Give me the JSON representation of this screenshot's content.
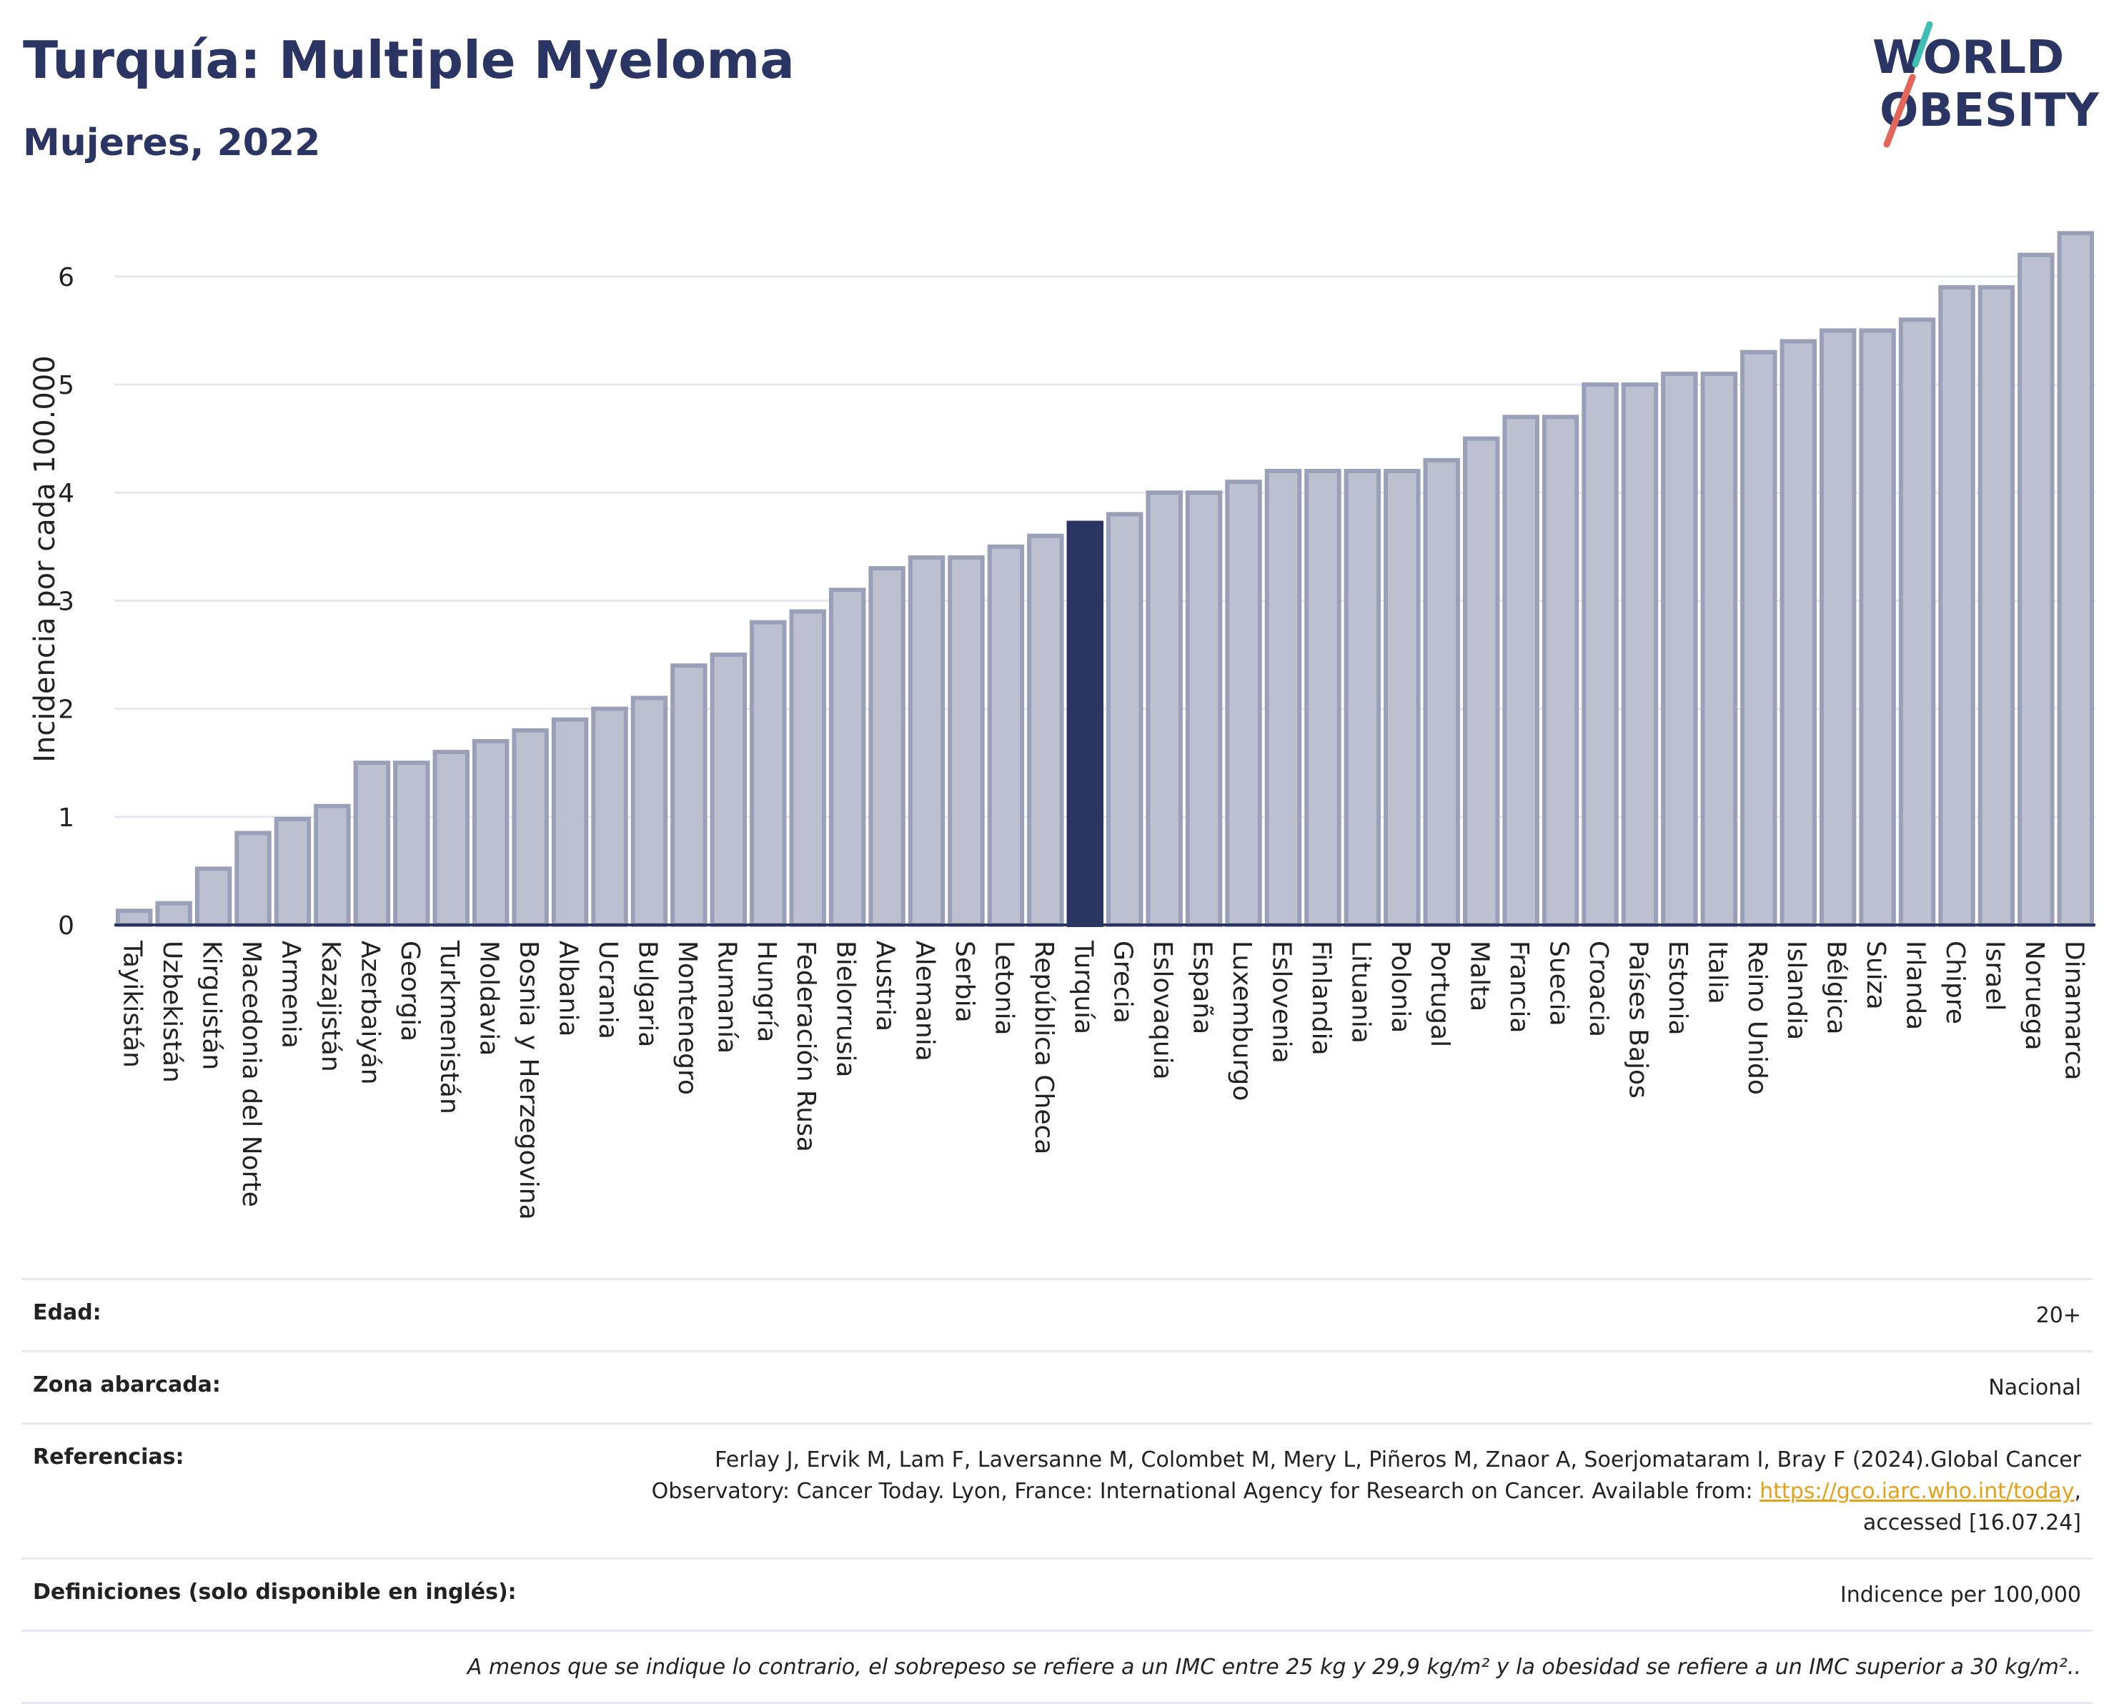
{
  "header": {
    "title": "Turquía: Multiple Myeloma",
    "subtitle": "Mujeres, 2022"
  },
  "logo": {
    "line1": "WORLD",
    "line2": "OBESITY",
    "colors": {
      "text": "#2a3563",
      "slash_teal": "#3fbfb5",
      "slash_red": "#e2675a"
    }
  },
  "chart_data": {
    "type": "bar",
    "ylabel": "Incidencia por cada 100.000",
    "ylim": [
      0,
      6.5
    ],
    "yticks": [
      "0",
      "1",
      "2",
      "3",
      "4",
      "5",
      "6"
    ],
    "grid": true,
    "highlight": "Turquía",
    "colors": {
      "bar": "#bcc0d0",
      "bar_border": "#9aa0b8",
      "highlight": "#2a3563"
    },
    "categories": [
      "Tayikistán",
      "Uzbekistán",
      "Kirguistán",
      "Macedonia del Norte",
      "Armenia",
      "Kazajistán",
      "Azerbaiyán",
      "Georgia",
      "Turkmenistán",
      "Moldavia",
      "Bosnia y Herzegovina",
      "Albania",
      "Ucrania",
      "Bulgaria",
      "Montenegro",
      "Rumanía",
      "Hungría",
      "Federación Rusa",
      "Bielorrusia",
      "Austria",
      "Alemania",
      "Serbia",
      "Letonia",
      "República Checa",
      "Turquía",
      "Grecia",
      "Eslovaquia",
      "España",
      "Luxemburgo",
      "Eslovenia",
      "Finlandia",
      "Lituania",
      "Polonia",
      "Portugal",
      "Malta",
      "Francia",
      "Suecia",
      "Croacia",
      "Países Bajos",
      "Estonia",
      "Italia",
      "Reino Unido",
      "Islandia",
      "Bélgica",
      "Suiza",
      "Irlanda",
      "Chipre",
      "Israel",
      "Noruega",
      "Dinamarca"
    ],
    "values": [
      0.13,
      0.2,
      0.52,
      0.85,
      0.98,
      1.1,
      1.5,
      1.5,
      1.6,
      1.7,
      1.8,
      1.9,
      2.0,
      2.1,
      2.4,
      2.5,
      2.8,
      2.9,
      3.1,
      3.3,
      3.4,
      3.4,
      3.5,
      3.6,
      3.72,
      3.8,
      4.0,
      4.0,
      4.1,
      4.2,
      4.2,
      4.2,
      4.2,
      4.3,
      4.5,
      4.7,
      4.7,
      5.0,
      5.0,
      5.1,
      5.1,
      5.3,
      5.4,
      5.5,
      5.5,
      5.6,
      5.9,
      5.9,
      6.2,
      6.4
    ]
  },
  "meta": {
    "age_label": "Edad:",
    "age_value": "20+",
    "area_label": "Zona abarcada:",
    "area_value": "Nacional",
    "ref_label": "Referencias:",
    "ref_text1": "Ferlay J, Ervik M, Lam F, Laversanne M, Colombet M, Mery L, Piñeros M, Znaor A, Soerjomataram I, Bray F (2024).Global Cancer",
    "ref_text2": "Observatory: Cancer Today. Lyon, France: International Agency for Research on Cancer. Available from: ",
    "ref_link": "https://gco.iarc.who.int/today",
    "ref_text3": ",",
    "ref_text4": "accessed [16.07.24]",
    "def_label": "Definiciones (solo disponible en inglés):",
    "def_value": "Indicence per 100,000",
    "note": "A menos que se indique lo contrario, el sobrepeso se refiere a un IMC entre 25 kg y 29,9 kg/m² y la obesidad se refiere a un IMC superior a 30 kg/m².."
  }
}
